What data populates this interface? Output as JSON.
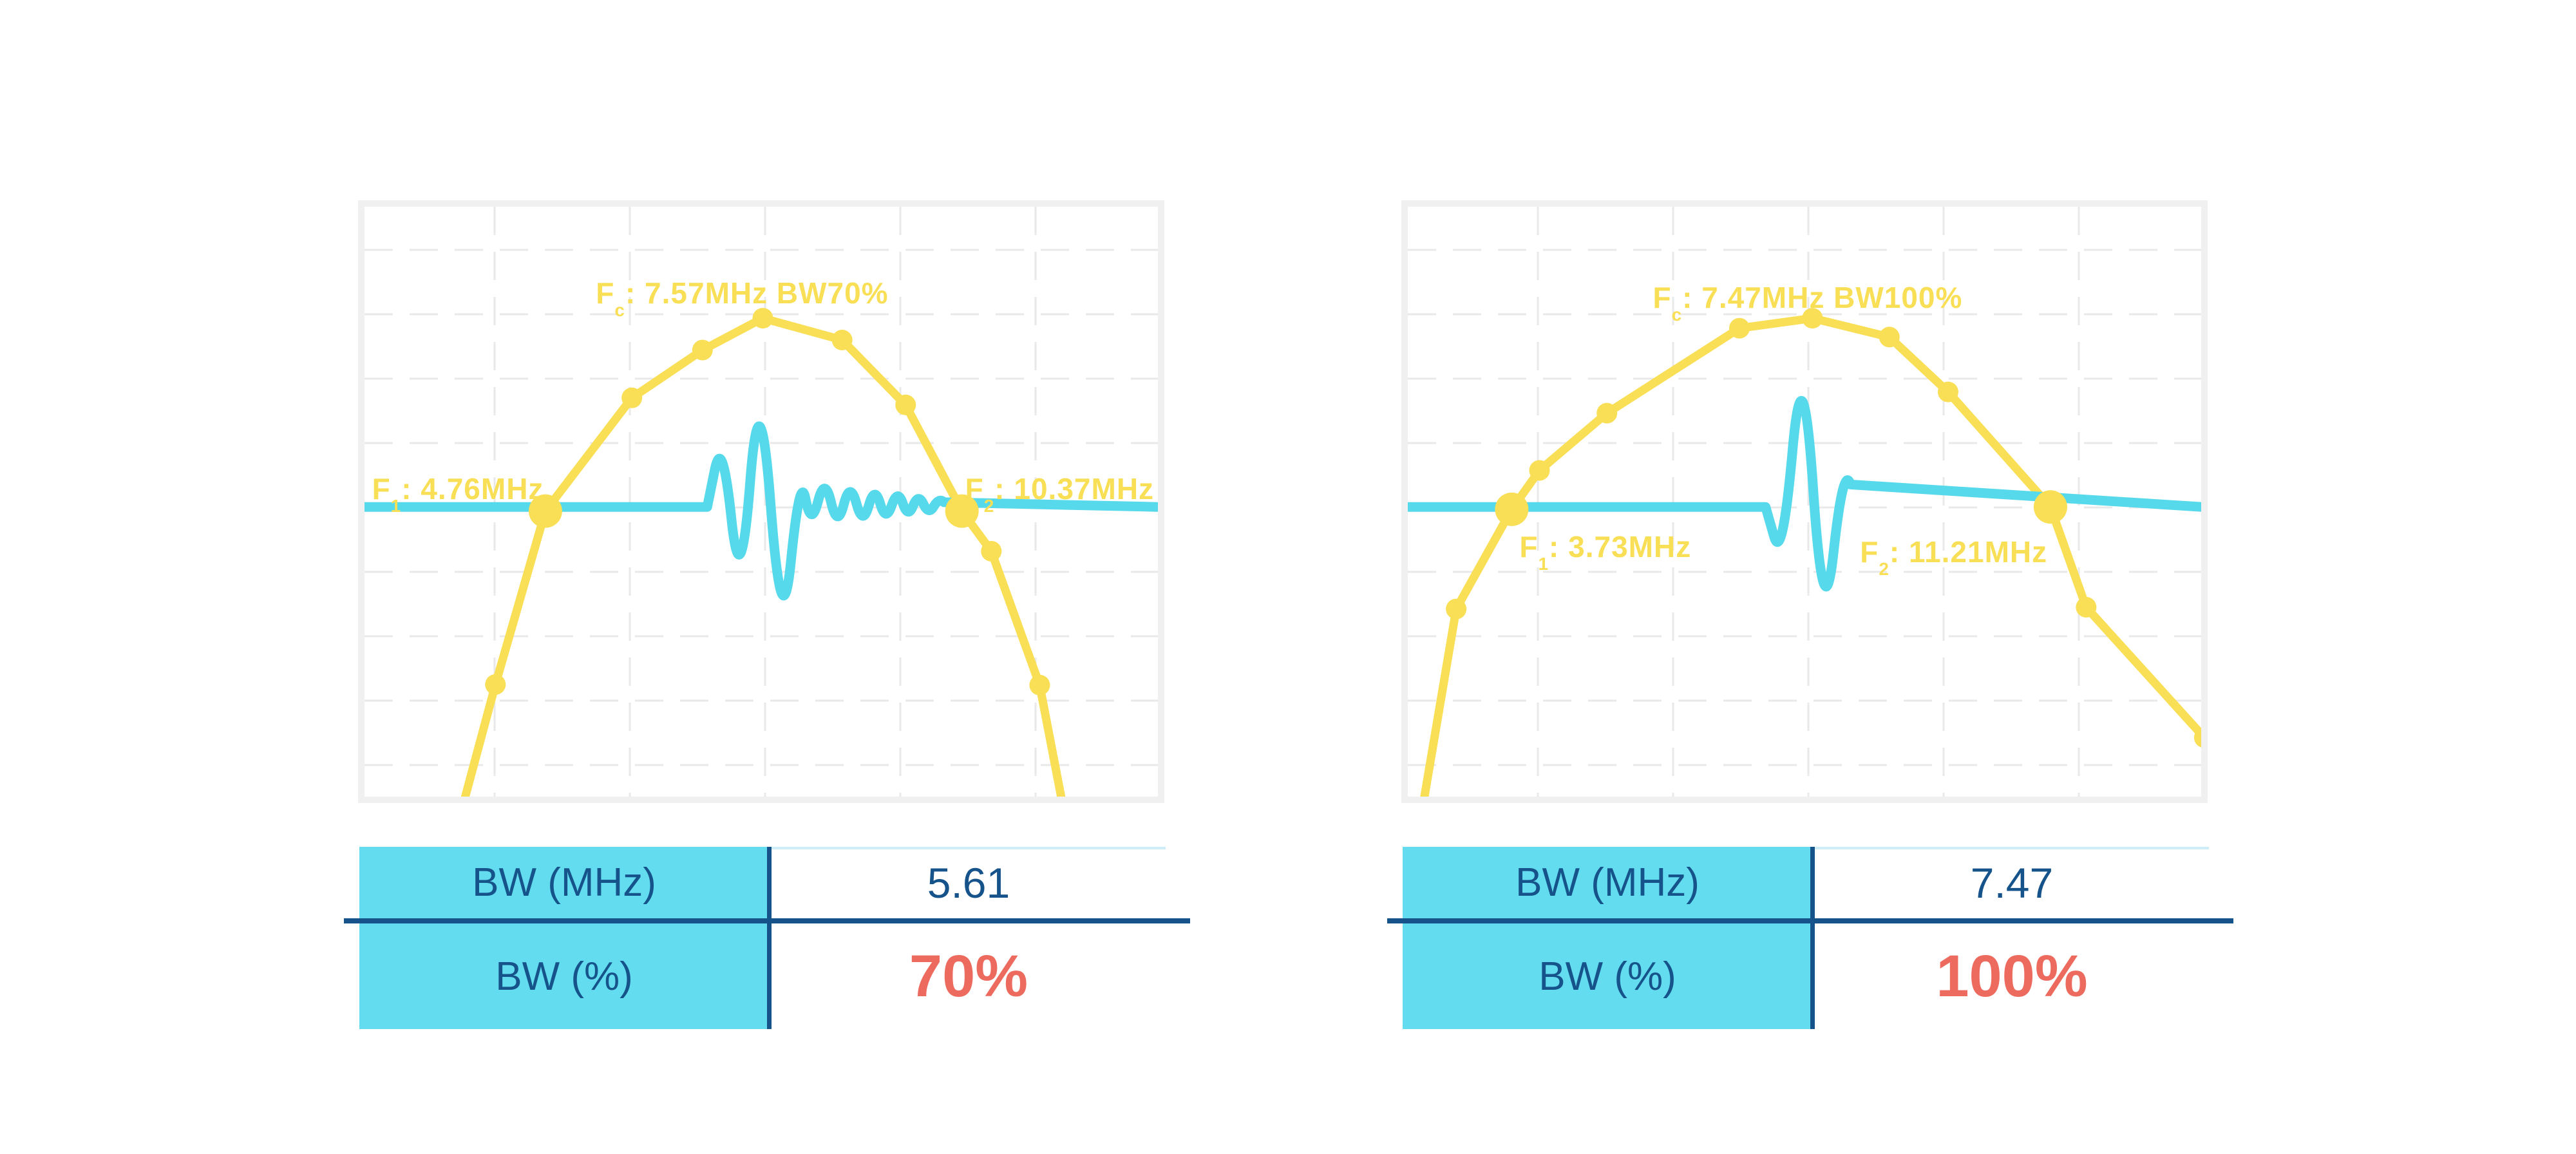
{
  "colors": {
    "spectrum_yellow": "#F9DF55",
    "waveform_cyan": "#56D9EA",
    "table_header_cyan": "#62DCEE",
    "navy_text": "#15538A",
    "red_value": "#ED6A5E",
    "chart_border_gray": "#F0F0F0",
    "grid_gray": "#E9E9E9",
    "table_top_light": "#CDEEF6",
    "background": "#FFFFFF"
  },
  "chart_data": [
    {
      "type": "line",
      "title": "",
      "panel": "left",
      "description": "Transducer frequency spectrum (yellow, piecewise-linear with dot markers) with time-domain pulse echo waveform (cyan) at 70% bandwidth",
      "axes_hidden": true,
      "grid": {
        "on": true,
        "dashed": true,
        "v_start": 202,
        "v_step": 210,
        "h_start": 67,
        "h_step": 100
      },
      "values": {
        "fc_mhz": 7.57,
        "f1_mhz": 4.76,
        "f2_mhz": 10.37,
        "bw_mhz": 5.61,
        "bw_pct": 70
      },
      "labels": {
        "fc": {
          "prefix": "F",
          "sub": "c",
          "rest": ": 7.57MHz BW70%",
          "x": 0.476,
          "y": 0.146,
          "align": "center"
        },
        "f1": {
          "prefix": "F",
          "sub": "1",
          "rest": ": 4.76MHz",
          "x": 0.226,
          "y": 0.478,
          "align": "right"
        },
        "f2": {
          "prefix": "F",
          "sub": "2",
          "rest": ": 10.37MHz",
          "x": 0.757,
          "y": 0.478,
          "align": "left"
        }
      },
      "spectrum": {
        "points": [
          [
            0.127,
            1.0
          ],
          [
            0.165,
            0.81
          ],
          [
            0.228,
            0.516
          ],
          [
            0.337,
            0.324
          ],
          [
            0.426,
            0.243
          ],
          [
            0.502,
            0.189
          ],
          [
            0.602,
            0.226
          ],
          [
            0.682,
            0.336
          ],
          [
            0.753,
            0.516
          ],
          [
            0.79,
            0.584
          ],
          [
            0.851,
            0.811
          ],
          [
            0.878,
            1.0
          ]
        ],
        "marker_idx": [
          1,
          2,
          3,
          4,
          5,
          6,
          7,
          8,
          9,
          10
        ],
        "big_idx": [
          2,
          8
        ]
      },
      "waveform": {
        "baseline_y": 0.509,
        "points": [
          [
            0.0,
            0.509
          ],
          [
            0.432,
            0.509
          ],
          [
            0.451,
            0.383
          ],
          [
            0.474,
            0.676
          ],
          [
            0.498,
            0.259
          ],
          [
            0.526,
            0.754
          ],
          [
            0.549,
            0.447
          ],
          [
            0.563,
            0.545
          ],
          [
            0.58,
            0.455
          ],
          [
            0.596,
            0.547
          ],
          [
            0.612,
            0.463
          ],
          [
            0.628,
            0.543
          ],
          [
            0.643,
            0.471
          ],
          [
            0.657,
            0.536
          ],
          [
            0.672,
            0.477
          ],
          [
            0.685,
            0.529
          ],
          [
            0.698,
            0.485
          ],
          [
            0.711,
            0.523
          ],
          [
            0.724,
            0.493
          ],
          [
            0.737,
            0.509
          ],
          [
            1.0,
            0.509
          ]
        ]
      }
    },
    {
      "type": "line",
      "title": "",
      "panel": "right",
      "description": "Transducer frequency spectrum (yellow, piecewise-linear with dot markers) with time-domain pulse echo waveform (cyan) at 100% bandwidth",
      "axes_hidden": true,
      "grid": {
        "on": true,
        "dashed": true,
        "v_start": 202,
        "v_step": 210,
        "h_start": 67,
        "h_step": 100
      },
      "values": {
        "fc_mhz": 7.47,
        "f1_mhz": 3.73,
        "f2_mhz": 11.21,
        "bw_mhz": 7.47,
        "bw_pct": 100
      },
      "labels": {
        "fc": {
          "prefix": "F",
          "sub": "c",
          "rest": ": 7.47MHz BW100%",
          "x": 0.504,
          "y": 0.154,
          "align": "center"
        },
        "f1": {
          "prefix": "F",
          "sub": "1",
          "rest": ": 3.73MHz",
          "x": 0.249,
          "y": 0.576,
          "align": "center"
        },
        "f2": {
          "prefix": "F",
          "sub": "2",
          "rest": ": 11.21MHz",
          "x": 0.57,
          "y": 0.585,
          "align": "left"
        }
      },
      "spectrum": {
        "points": [
          [
            0.021,
            1.0
          ],
          [
            0.061,
            0.682
          ],
          [
            0.131,
            0.513
          ],
          [
            0.166,
            0.447
          ],
          [
            0.251,
            0.35
          ],
          [
            0.418,
            0.206
          ],
          [
            0.51,
            0.189
          ],
          [
            0.607,
            0.221
          ],
          [
            0.681,
            0.314
          ],
          [
            0.81,
            0.509
          ],
          [
            0.855,
            0.679
          ],
          [
            1.004,
            0.9
          ]
        ],
        "marker_idx": [
          1,
          2,
          3,
          4,
          5,
          6,
          7,
          8,
          9,
          10,
          11
        ],
        "big_idx": [
          2,
          9
        ]
      },
      "waveform": {
        "baseline_y": 0.509,
        "points": [
          [
            0.0,
            0.509
          ],
          [
            0.451,
            0.509
          ],
          [
            0.472,
            0.608
          ],
          [
            0.498,
            0.217
          ],
          [
            0.524,
            0.741
          ],
          [
            0.549,
            0.433
          ],
          [
            0.567,
            0.509
          ],
          [
            1.0,
            0.509
          ]
        ]
      }
    }
  ],
  "tables": [
    {
      "rows": [
        {
          "label": "BW (MHz)",
          "value": "5.61",
          "emphasis": "navy"
        },
        {
          "label": "BW (%)",
          "value": "70%",
          "emphasis": "red"
        }
      ]
    },
    {
      "rows": [
        {
          "label": "BW (MHz)",
          "value": "7.47",
          "emphasis": "navy"
        },
        {
          "label": "BW (%)",
          "value": "100%",
          "emphasis": "red"
        }
      ]
    }
  ]
}
